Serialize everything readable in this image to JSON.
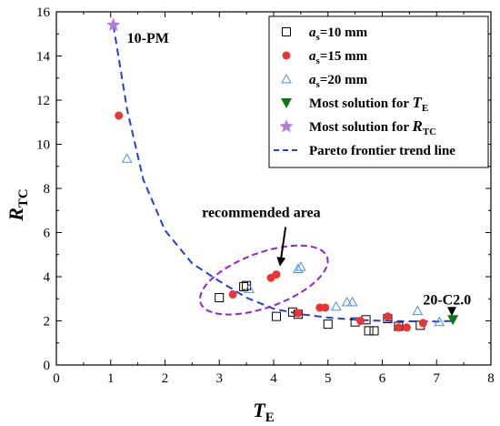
{
  "chart_data": {
    "type": "scatter",
    "xlabel": "T",
    "xlabel_sub": "E",
    "ylabel": "R",
    "ylabel_sub": "TC",
    "xlim": [
      0,
      8
    ],
    "ylim": [
      0,
      16
    ],
    "xticks": [
      "0",
      "1",
      "2",
      "3",
      "4",
      "5",
      "6",
      "7",
      "8"
    ],
    "yticks": [
      "0",
      "2",
      "4",
      "6",
      "8",
      "10",
      "12",
      "14",
      "16"
    ],
    "legend_position": "top-right",
    "series": [
      {
        "name_prefix": "a",
        "name_sub": "s",
        "name_suffix": "=10 mm",
        "marker": "open-square",
        "color": "#000000",
        "points": [
          [
            3.0,
            3.05
          ],
          [
            3.45,
            3.55
          ],
          [
            3.5,
            3.6
          ],
          [
            4.05,
            2.2
          ],
          [
            4.35,
            2.4
          ],
          [
            4.45,
            2.3
          ],
          [
            5.0,
            1.85
          ],
          [
            5.5,
            1.95
          ],
          [
            5.7,
            2.05
          ],
          [
            5.75,
            1.55
          ],
          [
            5.85,
            1.55
          ],
          [
            6.1,
            2.1
          ],
          [
            6.3,
            1.75
          ],
          [
            6.7,
            1.8
          ]
        ]
      },
      {
        "name_prefix": "a",
        "name_sub": "s",
        "name_suffix": "=15 mm",
        "marker": "filled-circle",
        "color": "#ee3333",
        "points": [
          [
            1.15,
            11.3
          ],
          [
            3.25,
            3.2
          ],
          [
            3.95,
            3.95
          ],
          [
            4.05,
            4.1
          ],
          [
            4.45,
            2.35
          ],
          [
            4.85,
            2.6
          ],
          [
            4.95,
            2.6
          ],
          [
            5.6,
            2.0
          ],
          [
            6.1,
            2.2
          ],
          [
            6.3,
            1.7
          ],
          [
            6.45,
            1.7
          ],
          [
            6.75,
            1.9
          ]
        ]
      },
      {
        "name_prefix": "a",
        "name_sub": "s",
        "name_suffix": "=20 mm",
        "marker": "open-triangle",
        "color": "#4a8fe7",
        "points": [
          [
            1.3,
            9.35
          ],
          [
            3.55,
            3.45
          ],
          [
            4.45,
            4.35
          ],
          [
            4.5,
            4.45
          ],
          [
            5.15,
            2.65
          ],
          [
            5.35,
            2.85
          ],
          [
            5.45,
            2.85
          ],
          [
            6.65,
            2.45
          ],
          [
            7.05,
            1.95
          ]
        ]
      },
      {
        "name_prefix": "Most solution for ",
        "name_var": "T",
        "name_sub": "E",
        "marker": "filled-triangle-down",
        "color": "#0a7a0a",
        "points": [
          [
            7.3,
            2.05
          ]
        ]
      },
      {
        "name_prefix": "Most solution for ",
        "name_var": "R",
        "name_sub": "TC",
        "marker": "star",
        "color": "#b37be6",
        "points": [
          [
            1.05,
            15.4
          ]
        ]
      },
      {
        "name_prefix": "Pareto frontier trend line",
        "marker": "dashed-line",
        "color": "#1f3fe0",
        "points": [
          [
            1.05,
            15.4
          ],
          [
            1.3,
            11.6
          ],
          [
            1.6,
            8.4
          ],
          [
            2.0,
            6.1
          ],
          [
            2.5,
            4.6
          ],
          [
            3.0,
            3.8
          ],
          [
            3.5,
            3.05
          ],
          [
            4.0,
            2.55
          ],
          [
            4.5,
            2.3
          ],
          [
            5.0,
            2.15
          ],
          [
            5.5,
            2.05
          ],
          [
            6.0,
            2.0
          ],
          [
            6.5,
            1.98
          ],
          [
            7.0,
            1.97
          ],
          [
            7.3,
            2.0
          ]
        ]
      }
    ],
    "annotations": {
      "pm_label": "10-PM",
      "c2_label": "20-C2.0",
      "area_label": "recommended area"
    }
  },
  "colors": {
    "ellipse": "#9a1fd6",
    "arrow": "#000000"
  }
}
